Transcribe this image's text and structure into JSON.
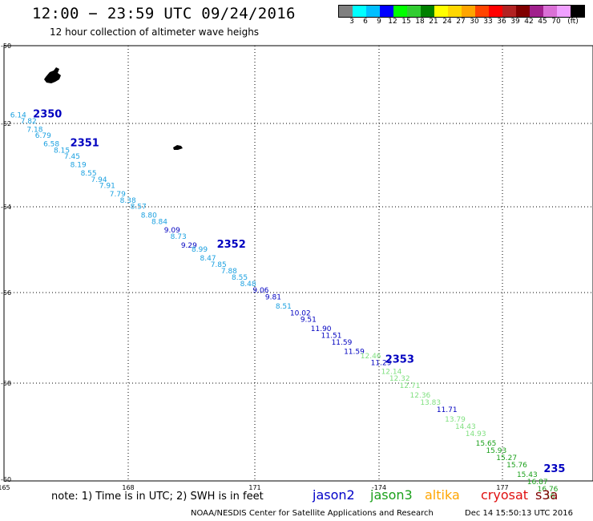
{
  "title": "12:00 − 23:59 UTC 09/24/2016",
  "subtitle": "12 hour collection of altimeter wave heighs",
  "colorbar": {
    "colors": [
      "#808080",
      "#00ffff",
      "#00bfff",
      "#0000ff",
      "#00ff00",
      "#32cd32",
      "#008000",
      "#ffff00",
      "#ffd700",
      "#ffa500",
      "#ff4500",
      "#ff0000",
      "#b22222",
      "#800000",
      "#a0208c",
      "#da70d6",
      "#f0a0ff",
      "#000000"
    ],
    "labels": [
      "3",
      "6",
      "9",
      "12",
      "15",
      "18",
      "21",
      "24",
      "27",
      "30",
      "33",
      "36",
      "39",
      "42",
      "45",
      "70",
      "(ft)"
    ]
  },
  "map": {
    "lon_ticks": [
      "165",
      "168",
      "171",
      "-174",
      "177"
    ],
    "lat_ticks": [
      "-50",
      "-52",
      "-54",
      "-56",
      "-58",
      "-60"
    ]
  },
  "track_colors": {
    "c1": "#1aa0e0",
    "c2": "#0000c0",
    "c3": "#80e080",
    "c4": "#1aa01a"
  },
  "observations": [
    {
      "v": "6.14",
      "lon": 165.15,
      "lat": -51.85,
      "c": "c1"
    },
    {
      "v": "7.82",
      "lon": 165.4,
      "lat": -52.0,
      "c": "c1"
    },
    {
      "v": "7.18",
      "lon": 165.55,
      "lat": -52.2,
      "c": "c1"
    },
    {
      "v": "6.79",
      "lon": 165.75,
      "lat": -52.35,
      "c": "c1"
    },
    {
      "v": "6.58",
      "lon": 165.95,
      "lat": -52.55,
      "c": "c1"
    },
    {
      "v": "8.15",
      "lon": 166.2,
      "lat": -52.7,
      "c": "c1"
    },
    {
      "v": "7.45",
      "lon": 166.45,
      "lat": -52.85,
      "c": "c1"
    },
    {
      "v": "8.19",
      "lon": 166.6,
      "lat": -53.05,
      "c": "c1"
    },
    {
      "v": "8.55",
      "lon": 166.85,
      "lat": -53.25,
      "c": "c1"
    },
    {
      "v": "7.94",
      "lon": 167.1,
      "lat": -53.4,
      "c": "c1"
    },
    {
      "v": "7.91",
      "lon": 167.3,
      "lat": -53.55,
      "c": "c1"
    },
    {
      "v": "7.79",
      "lon": 167.55,
      "lat": -53.75,
      "c": "c1"
    },
    {
      "v": "8.38",
      "lon": 167.8,
      "lat": -53.9,
      "c": "c1"
    },
    {
      "v": "8.57",
      "lon": 168.05,
      "lat": -54.05,
      "c": "c1"
    },
    {
      "v": "8.80",
      "lon": 168.3,
      "lat": -54.25,
      "c": "c1"
    },
    {
      "v": "8.84",
      "lon": 168.55,
      "lat": -54.4,
      "c": "c1"
    },
    {
      "v": "9.09",
      "lon": 168.85,
      "lat": -54.6,
      "c": "c2"
    },
    {
      "v": "8.73",
      "lon": 169.0,
      "lat": -54.75,
      "c": "c1"
    },
    {
      "v": "9.29",
      "lon": 169.25,
      "lat": -54.95,
      "c": "c2"
    },
    {
      "v": "8.99",
      "lon": 169.5,
      "lat": -55.05,
      "c": "c1"
    },
    {
      "v": "8.47",
      "lon": 169.7,
      "lat": -55.25,
      "c": "c1"
    },
    {
      "v": "7.85",
      "lon": 169.95,
      "lat": -55.4,
      "c": "c1"
    },
    {
      "v": "7.88",
      "lon": 170.2,
      "lat": -55.55,
      "c": "c1"
    },
    {
      "v": "8.55",
      "lon": 170.45,
      "lat": -55.7,
      "c": "c1"
    },
    {
      "v": "8.48",
      "lon": 170.65,
      "lat": -55.85,
      "c": "c1"
    },
    {
      "v": "9.06",
      "lon": 170.95,
      "lat": -56.0,
      "c": "c2"
    },
    {
      "v": "9.81",
      "lon": 171.25,
      "lat": -56.15,
      "c": "c2"
    },
    {
      "v": "8.51",
      "lon": 171.5,
      "lat": -56.35,
      "c": "c1"
    },
    {
      "v": "10.02",
      "lon": 171.85,
      "lat": -56.5,
      "c": "c2"
    },
    {
      "v": "9.51",
      "lon": 172.1,
      "lat": -56.65,
      "c": "c2"
    },
    {
      "v": "11.90",
      "lon": 172.35,
      "lat": -56.85,
      "c": "c2"
    },
    {
      "v": "11.51",
      "lon": 172.6,
      "lat": -57.0,
      "c": "c2"
    },
    {
      "v": "11.59",
      "lon": 172.85,
      "lat": -57.15,
      "c": "c2"
    },
    {
      "v": "11.59",
      "lon": 173.15,
      "lat": -57.35,
      "c": "c2"
    },
    {
      "v": "12.46",
      "lon": 173.55,
      "lat": -57.45,
      "c": "c3"
    },
    {
      "v": "11.29",
      "lon": 173.8,
      "lat": -57.6,
      "c": "c2"
    },
    {
      "v": "12.14",
      "lon": 174.05,
      "lat": -57.8,
      "c": "c3"
    },
    {
      "v": "12.32",
      "lon": 174.25,
      "lat": -57.95,
      "c": "c3"
    },
    {
      "v": "12.71",
      "lon": 174.5,
      "lat": -58.1,
      "c": "c3"
    },
    {
      "v": "12.36",
      "lon": 174.75,
      "lat": -58.3,
      "c": "c3"
    },
    {
      "v": "13.83",
      "lon": 175.0,
      "lat": -58.45,
      "c": "c3"
    },
    {
      "v": "11.71",
      "lon": 175.4,
      "lat": -58.6,
      "c": "c2"
    },
    {
      "v": "13.79",
      "lon": 175.6,
      "lat": -58.8,
      "c": "c3"
    },
    {
      "v": "14.43",
      "lon": 175.85,
      "lat": -58.95,
      "c": "c3"
    },
    {
      "v": "14.93",
      "lon": 176.1,
      "lat": -59.1,
      "c": "c3"
    },
    {
      "v": "15.65",
      "lon": 176.35,
      "lat": -59.3,
      "c": "c4"
    },
    {
      "v": "15.93",
      "lon": 176.6,
      "lat": -59.45,
      "c": "c4"
    },
    {
      "v": "15.27",
      "lon": 176.85,
      "lat": -59.6,
      "c": "c4"
    },
    {
      "v": "15.76",
      "lon": 177.1,
      "lat": -59.75,
      "c": "c4"
    },
    {
      "v": "15.43",
      "lon": 177.35,
      "lat": -59.95,
      "c": "c4"
    },
    {
      "v": "16.87",
      "lon": 177.6,
      "lat": -60.1,
      "c": "c4"
    },
    {
      "v": "16.76",
      "lon": 177.85,
      "lat": -60.25,
      "c": "c4"
    },
    {
      "v": "16.",
      "lon": 178.05,
      "lat": -60.4,
      "c": "c4"
    }
  ],
  "passes": [
    {
      "label": "2350",
      "lon": 165.7,
      "lat": -51.85
    },
    {
      "label": "2351",
      "lon": 166.6,
      "lat": -52.55
    },
    {
      "label": "2352",
      "lon": 170.1,
      "lat": -54.95
    },
    {
      "label": "2353",
      "lon": 174.15,
      "lat": -57.55
    },
    {
      "label": "235",
      "lon": 178.0,
      "lat": -59.85
    }
  ],
  "note": "note: 1) Time is in UTC; 2) SWH is in feet",
  "satellites": [
    {
      "name": "jason2",
      "color": "#0000c8"
    },
    {
      "name": "jason3",
      "color": "#1aa01a"
    },
    {
      "name": "altika",
      "color": "#ffa500"
    },
    {
      "name": "cryosat",
      "color": "#e01010"
    },
    {
      "name": "s3a",
      "color": "#800000"
    }
  ],
  "footer_left": "NOAA/NESDIS Center for Satellite Applications and Research",
  "footer_right": "Dec 14 15:50:13 UTC 2016"
}
